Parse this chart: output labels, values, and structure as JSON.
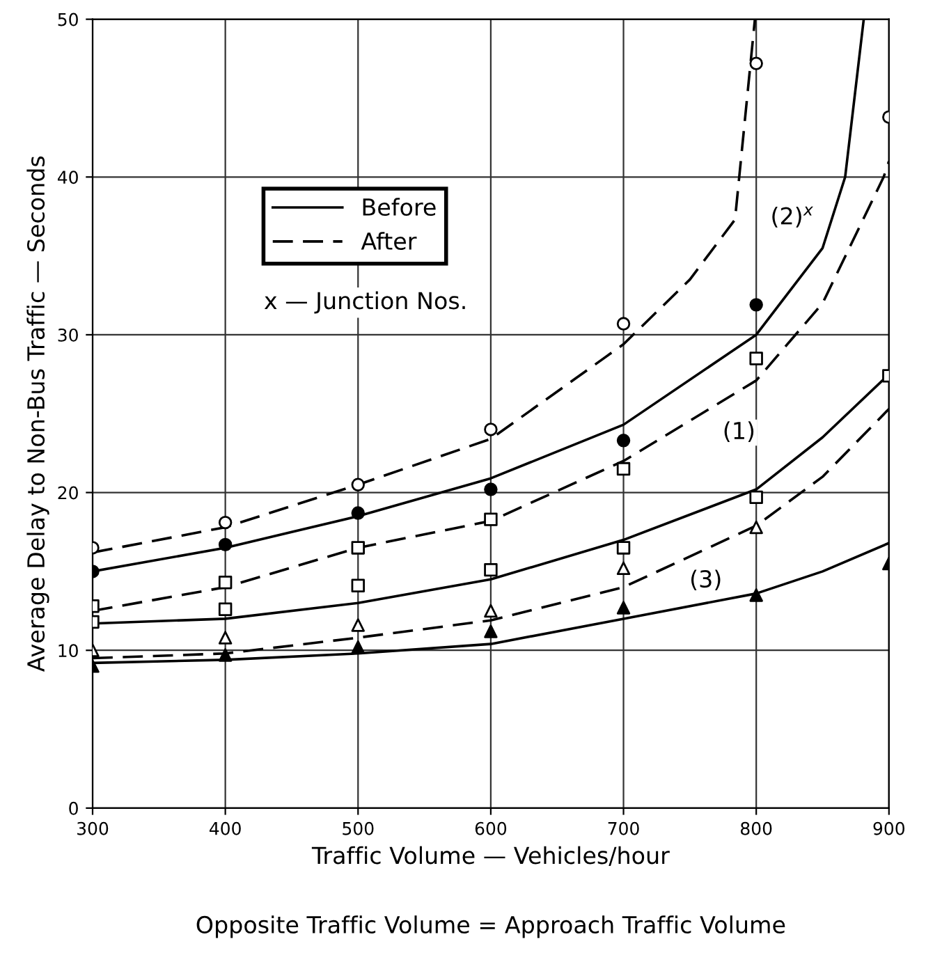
{
  "chart_data": {
    "type": "line",
    "xlabel": "Traffic Volume — Vehicles/hour",
    "ylabel": "Average Delay to Non-Bus Traffic — Seconds",
    "xlim": [
      300,
      900
    ],
    "ylim": [
      0,
      50
    ],
    "xticks": [
      300,
      400,
      500,
      600,
      700,
      800,
      900
    ],
    "yticks": [
      0,
      10,
      20,
      30,
      40,
      50
    ],
    "grid": true,
    "legend": "top left",
    "series": [
      {
        "name": "Before",
        "line_style": "solid",
        "color": "#000000",
        "x": [
          300,
          400,
          500,
          600,
          700,
          800,
          850,
          867,
          881
        ],
        "values": [
          15,
          16.5,
          18.5,
          20.9,
          24.3,
          30.0,
          35.5,
          40,
          50
        ]
      },
      {
        "name": "After",
        "line_style": "dashed",
        "color": "#000000",
        "x": [
          300,
          400,
          500,
          600,
          700,
          750,
          784,
          799
        ],
        "values": [
          16.2,
          17.8,
          20.5,
          23.4,
          29.4,
          33.5,
          37.3,
          50
        ]
      },
      {
        "type": "line",
        "line_style": "dashed",
        "color": "#000000",
        "x": [
          300,
          400,
          500,
          600,
          700,
          800,
          850,
          896,
          900
        ],
        "values": [
          12.5,
          14,
          16.5,
          18.2,
          22,
          27.1,
          32,
          40,
          41
        ]
      },
      {
        "type": "line",
        "line_style": "solid",
        "color": "#000000",
        "x": [
          300,
          400,
          500,
          600,
          700,
          800,
          850,
          900
        ],
        "values": [
          11.7,
          12,
          13,
          14.5,
          17.0,
          20.2,
          23.5,
          27.5
        ]
      },
      {
        "type": "line",
        "line_style": "dashed",
        "color": "#000000",
        "x": [
          300,
          400,
          500,
          600,
          700,
          800,
          850,
          900
        ],
        "values": [
          9.5,
          9.8,
          10.8,
          11.9,
          14.0,
          17.9,
          21,
          25.3
        ]
      },
      {
        "type": "line",
        "line_style": "solid",
        "color": "#000000",
        "x": [
          300,
          400,
          500,
          600,
          700,
          800,
          850,
          900
        ],
        "values": [
          9.2,
          9.4,
          9.8,
          10.4,
          12.0,
          13.6,
          15,
          16.8
        ]
      },
      {
        "type": "scatter",
        "marker": "circle",
        "color": "#ffffff",
        "x": [
          300,
          400,
          500,
          600,
          700,
          800,
          900
        ],
        "values": [
          16.5,
          18.1,
          20.5,
          24,
          30.7,
          47.2,
          43.8
        ]
      },
      {
        "type": "scatter",
        "marker": "circle",
        "color": "#000000",
        "x": [
          300,
          400,
          500,
          600,
          700,
          800
        ],
        "values": [
          15,
          16.7,
          18.7,
          20.2,
          23.3,
          31.9
        ]
      },
      {
        "type": "scatter",
        "marker": "square",
        "color": "#ffffff",
        "x": [
          300,
          400,
          500,
          600,
          700,
          800
        ],
        "values": [
          12.8,
          14.3,
          16.5,
          18.3,
          21.5,
          28.5
        ]
      },
      {
        "type": "scatter",
        "marker": "square",
        "color": "#ffffff",
        "x": [
          300,
          400,
          500,
          600,
          700,
          800,
          900
        ],
        "values": [
          11.8,
          12.6,
          14.1,
          15.1,
          16.5,
          19.7,
          27.4
        ]
      },
      {
        "type": "scatter",
        "marker": "triangle",
        "color": "#ffffff",
        "x": [
          300,
          400,
          500,
          600,
          700,
          800
        ],
        "values": [
          10,
          10.8,
          11.6,
          12.5,
          15.2,
          17.8
        ]
      },
      {
        "type": "scatter",
        "marker": "triangle",
        "color": "#000000",
        "x": [
          300,
          400,
          500,
          600,
          700,
          800,
          900
        ],
        "values": [
          9,
          9.7,
          10.2,
          11.2,
          12.7,
          13.5,
          15.5
        ]
      }
    ],
    "annotations": [
      {
        "text": "(1)",
        "x": 787,
        "y": 23.8
      },
      {
        "text": "(2)$^{x}$",
        "x": 827,
        "y": 37.4
      },
      {
        "text": "(3)",
        "x": 762,
        "y": 14.4
      },
      "x — Junction Nos.",
      "Opposite Traffic Volume = Approach Traffic Volume"
    ]
  }
}
